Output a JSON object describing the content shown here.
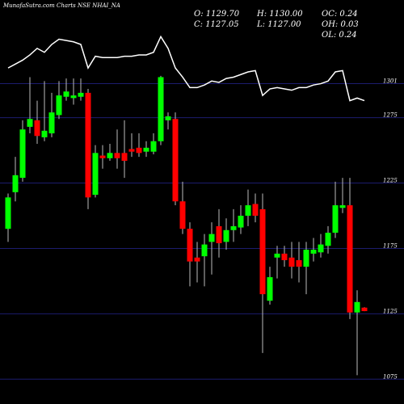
{
  "chart_data": {
    "type": "candlestick",
    "title": "MunafaSutra.com Charts NSE NHAI_NA",
    "stats": [
      "O: 1129.70",
      "H: 1130.00",
      "OC: 0.24",
      "C: 1127.05",
      "L: 1127.00",
      "OH: 0.03",
      "OL: 0.24"
    ],
    "up_color": "#00ff00",
    "down_color": "#ff0000",
    "grid": true,
    "grid_color": "#1c1c6e",
    "ylim": [
      1056,
      1365
    ],
    "yticks": [
      1075,
      1125,
      1175,
      1225,
      1275,
      1301
    ],
    "open": [
      1190,
      1218,
      1229,
      1268,
      1273,
      1260,
      1263,
      1277,
      1291,
      1290,
      1291,
      1294,
      1216,
      1246,
      1244,
      1248,
      1248,
      1251,
      1252,
      1249,
      1249,
      1257,
      1273,
      1274,
      1211,
      1190,
      1168,
      1169,
      1180,
      1192,
      1180,
      1189,
      1191,
      1200,
      1209,
      1205,
      1135,
      1168,
      1171,
      1168,
      1166,
      1161,
      1171,
      1172,
      1177,
      1187,
      1206,
      1208,
      1126,
      1129.7
    ],
    "high": [
      1217,
      1245,
      1273,
      1306,
      1288,
      1303,
      1294,
      1303,
      1305,
      1305,
      1305,
      1297,
      1254,
      1254,
      1255,
      1266,
      1273,
      1263,
      1263,
      1257,
      1263,
      1307,
      1279,
      1279,
      1226,
      1195,
      1180,
      1186,
      1195,
      1205,
      1198,
      1205,
      1208,
      1220,
      1217,
      1217,
      1161,
      1177,
      1177,
      1180,
      1180,
      1180,
      1183,
      1186,
      1192,
      1226,
      1229,
      1229,
      1143,
      1130.0
    ],
    "low": [
      1180,
      1211,
      1226,
      1263,
      1255,
      1257,
      1260,
      1274,
      1288,
      1285,
      1288,
      1205,
      1214,
      1236,
      1242,
      1236,
      1229,
      1245,
      1245,
      1245,
      1247,
      1254,
      1266,
      1208,
      1186,
      1146,
      1149,
      1146,
      1155,
      1168,
      1174,
      1180,
      1186,
      1192,
      1195,
      1095,
      1132,
      1152,
      1161,
      1152,
      1149,
      1140,
      1165,
      1168,
      1171,
      1183,
      1202,
      1121,
      1078,
      1127.0
    ],
    "close": [
      1214,
      1231,
      1266,
      1274,
      1261,
      1265,
      1279,
      1292,
      1295,
      1292,
      1294,
      1214,
      1248,
      1244,
      1248,
      1244,
      1242,
      1249,
      1248,
      1252,
      1257,
      1306,
      1276,
      1211,
      1190,
      1165,
      1165,
      1178,
      1186,
      1179,
      1189,
      1192,
      1200,
      1208,
      1200,
      1140,
      1153,
      1171,
      1166,
      1161,
      1161,
      1174,
      1174,
      1178,
      1187,
      1208,
      1208,
      1126,
      1134,
      1127.05
    ],
    "line": {
      "color": "#ffffff",
      "values": [
        1313,
        1316,
        1319,
        1323,
        1328,
        1325,
        1331,
        1335,
        1334,
        1333,
        1331,
        1313,
        1322,
        1321,
        1321,
        1321,
        1322,
        1322,
        1323,
        1323,
        1325,
        1337,
        1328,
        1313,
        1306,
        1298,
        1298,
        1300,
        1303,
        1302,
        1305,
        1306,
        1308,
        1310,
        1311,
        1292,
        1297,
        1298,
        1297,
        1296,
        1298,
        1298,
        1300,
        1301,
        1303,
        1310,
        1311,
        1288,
        1290,
        1288
      ]
    }
  }
}
